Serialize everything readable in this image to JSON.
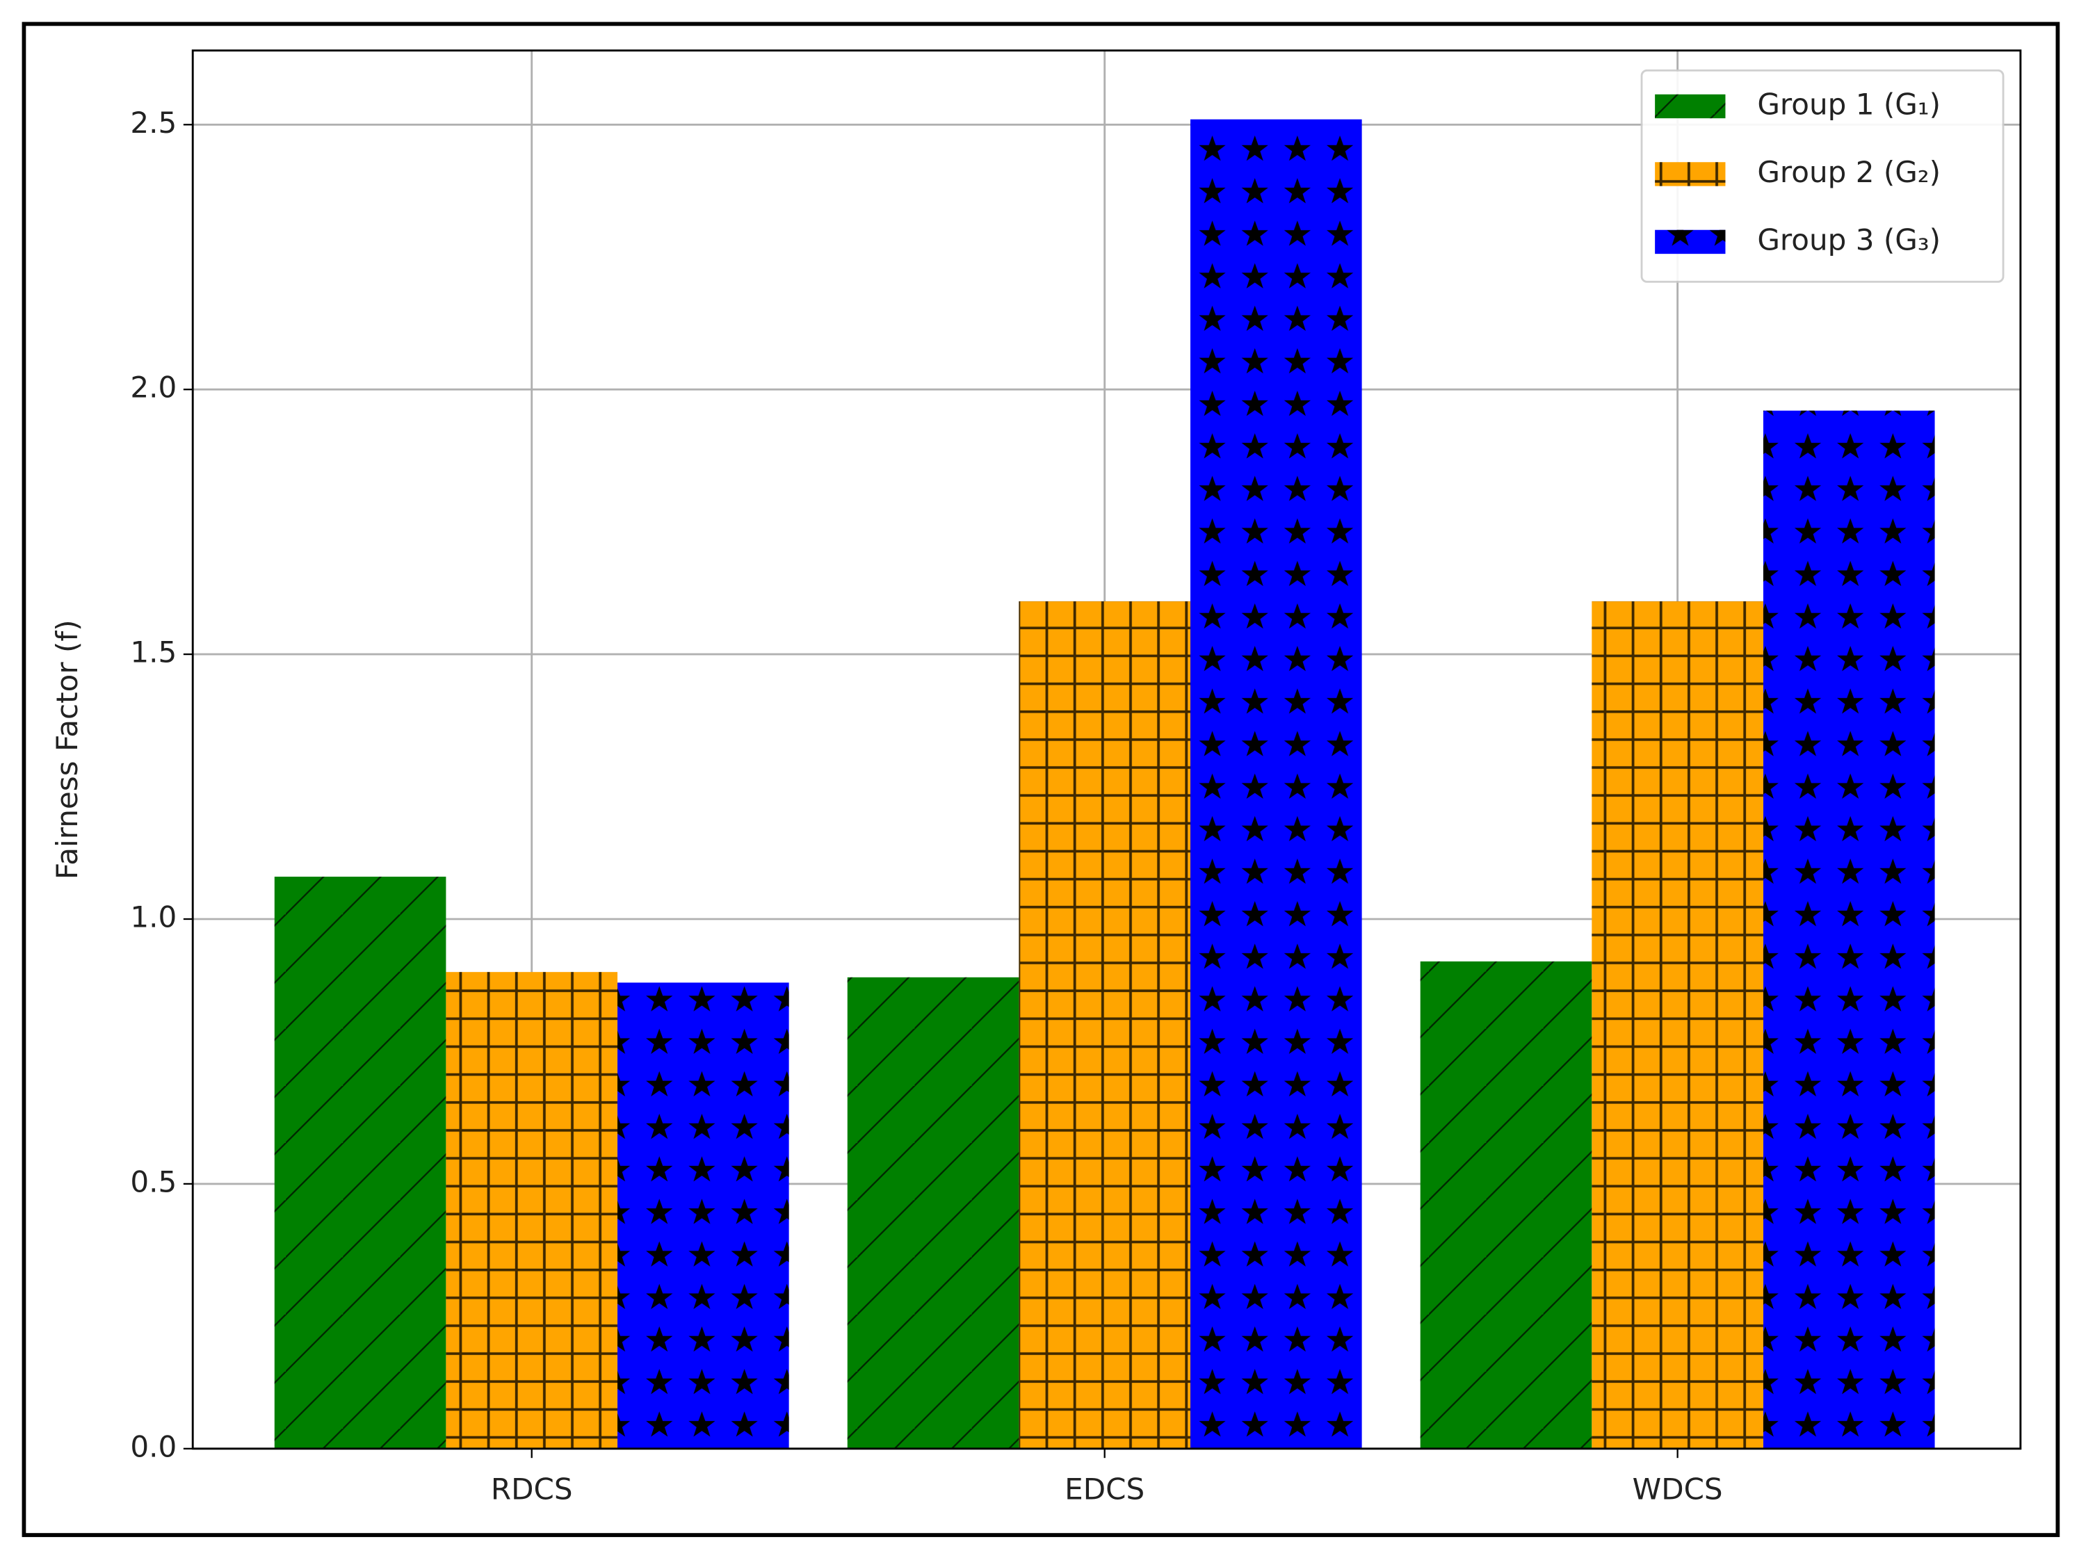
{
  "chart_data": {
    "type": "bar",
    "y_label": "Fairness Factor (f)",
    "categories": [
      "RDCS",
      "EDCS",
      "WDCS"
    ],
    "series": [
      {
        "name": "Group 1 (G₁)",
        "color": "#008000",
        "hatch": "/",
        "values": [
          1.08,
          0.89,
          0.92
        ]
      },
      {
        "name": "Group 2 (G₂)",
        "color": "#ffa500",
        "hatch": "+",
        "values": [
          0.9,
          1.6,
          1.6
        ]
      },
      {
        "name": "Group 3 (G₃)",
        "color": "#0000ff",
        "hatch": "*",
        "values": [
          0.88,
          2.51,
          1.96
        ]
      }
    ],
    "ylim": [
      0,
      2.64
    ],
    "yticks": [
      {
        "value": 0,
        "label": "0.0"
      },
      0.5,
      {
        "value": 1,
        "label": "1.0"
      },
      1.5,
      {
        "value": 2,
        "label": "2.0"
      },
      2.5
    ],
    "grid": true,
    "legend": "upper right"
  }
}
